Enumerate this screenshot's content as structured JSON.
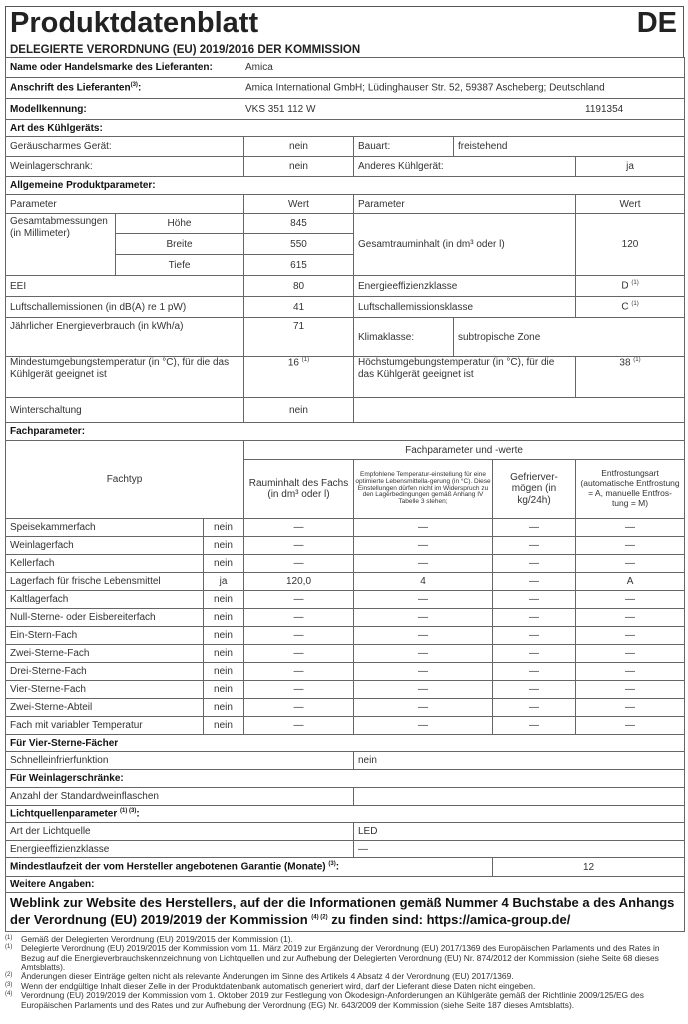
{
  "title": "Produktdatenblatt",
  "lang": "DE",
  "subtitle": "DELEGIERTE VERORDNUNG (EU) 2019/2016 DER KOMMISSION",
  "supplier": {
    "name_label": "Name oder Handelsmarke des Lieferanten:",
    "name": "Amica",
    "address_label": "Anschrift des Lieferanten",
    "address_sup": "(3)",
    "address": "Amica International GmbH; Lüdinghauser Str. 52, 59387 Ascheberg; Deutschland",
    "model_label": "Modellkennung:",
    "model": "VKS 351 112 W",
    "model_no": "1191354"
  },
  "type": {
    "heading": "Art des Kühlgeräts:",
    "low_noise_label": "Geräuscharmes Gerät:",
    "low_noise": "nein",
    "design_label": "Bauart:",
    "design": "freistehend",
    "wine_label": "Weinlagerschrank:",
    "wine": "nein",
    "other_label": "Anderes Kühlgerät:",
    "other": "ja"
  },
  "general": {
    "heading": "Allgemeine Produktparameter:",
    "param": "Parameter",
    "value": "Wert",
    "dims_label": "Gesamtabmessungen (in Millimeter)",
    "height_label": "Höhe",
    "height": "845",
    "width_label": "Breite",
    "width": "550",
    "depth_label": "Tiefe",
    "depth": "615",
    "volume_label": "Gesamtrauminhalt (in dm³ oder l)",
    "volume": "120",
    "eei_label": "EEI",
    "eei": "80",
    "class_label": "Energieeffizienzklasse",
    "class": "D",
    "class_sup": "(1)",
    "noise_label": "Luftschallemissionen (in dB(A) re 1 pW)",
    "noise": "41",
    "noise_class_label": "Luftschallemissionsklasse",
    "noise_class": "C",
    "noise_class_sup": "(1)",
    "energy_label": "Jährlicher Energieverbrauch (in kWh/a)",
    "energy": "71",
    "climate_label": "Klimaklasse:",
    "climate": "subtropische Zone",
    "min_temp_label": "Mindestumgebungstemperatur (in °C), für die das Kühlgerät geeignet ist",
    "min_temp": "16",
    "min_temp_sup": "(1)",
    "max_temp_label": "Höchstumgebungstemperatur (in °C), für die das Kühlgerät geeignet ist",
    "max_temp": "38",
    "max_temp_sup": "(1)",
    "winter_label": "Winterschaltung",
    "winter": "nein"
  },
  "compartments": {
    "heading": "Fachparameter:",
    "type_header": "Fachtyp",
    "group_header": "Fachparameter und -werte",
    "vol_header": "Rauminhalt des Fachs (in dm³ oder l)",
    "temp_header": "Empfohlene Temperatur-einstellung für eine optimierte Lebensmittella-gerung (in °C). Diese Einstellungen dürfen nicht im Widerspruch zu den Lagerbedingungen gemäß Anhang IV Tabelle 3 stehen;",
    "freeze_header": "Gefrierver-mögen (in kg/24h)",
    "defrost_header": "Entfrostungsart (automatische Entfrostung = A, manuelle Entfros-tung = M)",
    "rows": [
      {
        "name": "Speisekammerfach",
        "present": "nein",
        "vol": "—",
        "temp": "—",
        "freeze": "—",
        "defrost": "—"
      },
      {
        "name": "Weinlagerfach",
        "present": "nein",
        "vol": "—",
        "temp": "—",
        "freeze": "—",
        "defrost": "—"
      },
      {
        "name": "Kellerfach",
        "present": "nein",
        "vol": "—",
        "temp": "—",
        "freeze": "—",
        "defrost": "—"
      },
      {
        "name": "Lagerfach für frische Lebensmittel",
        "present": "ja",
        "vol": "120,0",
        "temp": "4",
        "freeze": "—",
        "defrost": "A"
      },
      {
        "name": "Kaltlagerfach",
        "present": "nein",
        "vol": "—",
        "temp": "—",
        "freeze": "—",
        "defrost": "—"
      },
      {
        "name": "Null-Sterne- oder Eisbereiterfach",
        "present": "nein",
        "vol": "—",
        "temp": "—",
        "freeze": "—",
        "defrost": "—"
      },
      {
        "name": "Ein-Stern-Fach",
        "present": "nein",
        "vol": "—",
        "temp": "—",
        "freeze": "—",
        "defrost": "—"
      },
      {
        "name": "Zwei-Sterne-Fach",
        "present": "nein",
        "vol": "—",
        "temp": "—",
        "freeze": "—",
        "defrost": "—"
      },
      {
        "name": "Drei-Sterne-Fach",
        "present": "nein",
        "vol": "—",
        "temp": "—",
        "freeze": "—",
        "defrost": "—"
      },
      {
        "name": "Vier-Sterne-Fach",
        "present": "nein",
        "vol": "—",
        "temp": "—",
        "freeze": "—",
        "defrost": "—"
      },
      {
        "name": "Zwei-Sterne-Abteil",
        "present": "nein",
        "vol": "—",
        "temp": "—",
        "freeze": "—",
        "defrost": "—"
      },
      {
        "name": "Fach mit variabler Temperatur",
        "present": "nein",
        "vol": "—",
        "temp": "—",
        "freeze": "—",
        "defrost": "—"
      }
    ]
  },
  "four_star": {
    "heading": "Für Vier-Sterne-Fächer",
    "fast_label": "Schnelleinfrierfunktion",
    "fast": "nein"
  },
  "wine": {
    "heading": "Für Weinlagerschränke:",
    "bottles_label": "Anzahl der Standardweinflaschen",
    "bottles": ""
  },
  "light": {
    "heading": "Lichtquellenparameter",
    "heading_sup": "(1) (3)",
    "type_label": "Art der Lichtquelle",
    "type": "LED",
    "class_label": "Energieeffizienzklasse",
    "class": "—"
  },
  "warranty": {
    "label": "Mindestlaufzeit der vom Hersteller angebotenen Garantie (Monate)",
    "sup": "(3)",
    "value": "12"
  },
  "more": {
    "heading": "Weitere Angaben:",
    "weblink_a": "Weblink zur Website des Herstellers, auf der die Informationen gemäß Nummer 4 Buchstabe a des Anhangs der Verordnung (EU) 2019/2019 der Kommission",
    "weblink_sup": "(4) (2)",
    "weblink_b": "zu finden sind: https://amica-group.de/"
  },
  "footnotes": [
    {
      "mark": "(1)",
      "text": "Gemäß der Delegierten Verordnung (EU) 2019/2015 der Kommission (1)."
    },
    {
      "mark": "(1)",
      "text": "Delegierte Verordnung (EU) 2019/2015 der Kommission vom 11. März 2019 zur Ergänzung der Verordnung (EU) 2017/1369 des Europäischen Parlaments und des Rates in Bezug auf die Energieverbrauchskennzeichnung von Lichtquellen und zur Aufhebung der Delegierten Verordnung (EU) Nr. 874/2012 der Kommission (siehe Seite 68 dieses Amtsblatts)."
    },
    {
      "mark": "(2)",
      "text": "Änderungen dieser Einträge gelten nicht als relevante Änderungen im Sinne des Artikels 4 Absatz 4 der Verordnung (EU) 2017/1369."
    },
    {
      "mark": "(3)",
      "text": "Wenn der endgültige Inhalt dieser Zelle in der Produktdatenbank automatisch generiert wird, darf der Lieferant diese Daten nicht eingeben."
    },
    {
      "mark": "(4)",
      "text": "Verordnung (EU) 2019/2019 der Kommission vom 1. Oktober 2019 zur Festlegung von Ökodesign-Anforderungen an Kühlgeräte gemäß der Richtlinie 2009/125/EG des Europäischen Parlaments und des Rates und zur Aufhebung der Verordnung (EG) Nr. 643/2009 der Kommission (siehe Seite 187 dieses Amtsblatts)."
    }
  ]
}
